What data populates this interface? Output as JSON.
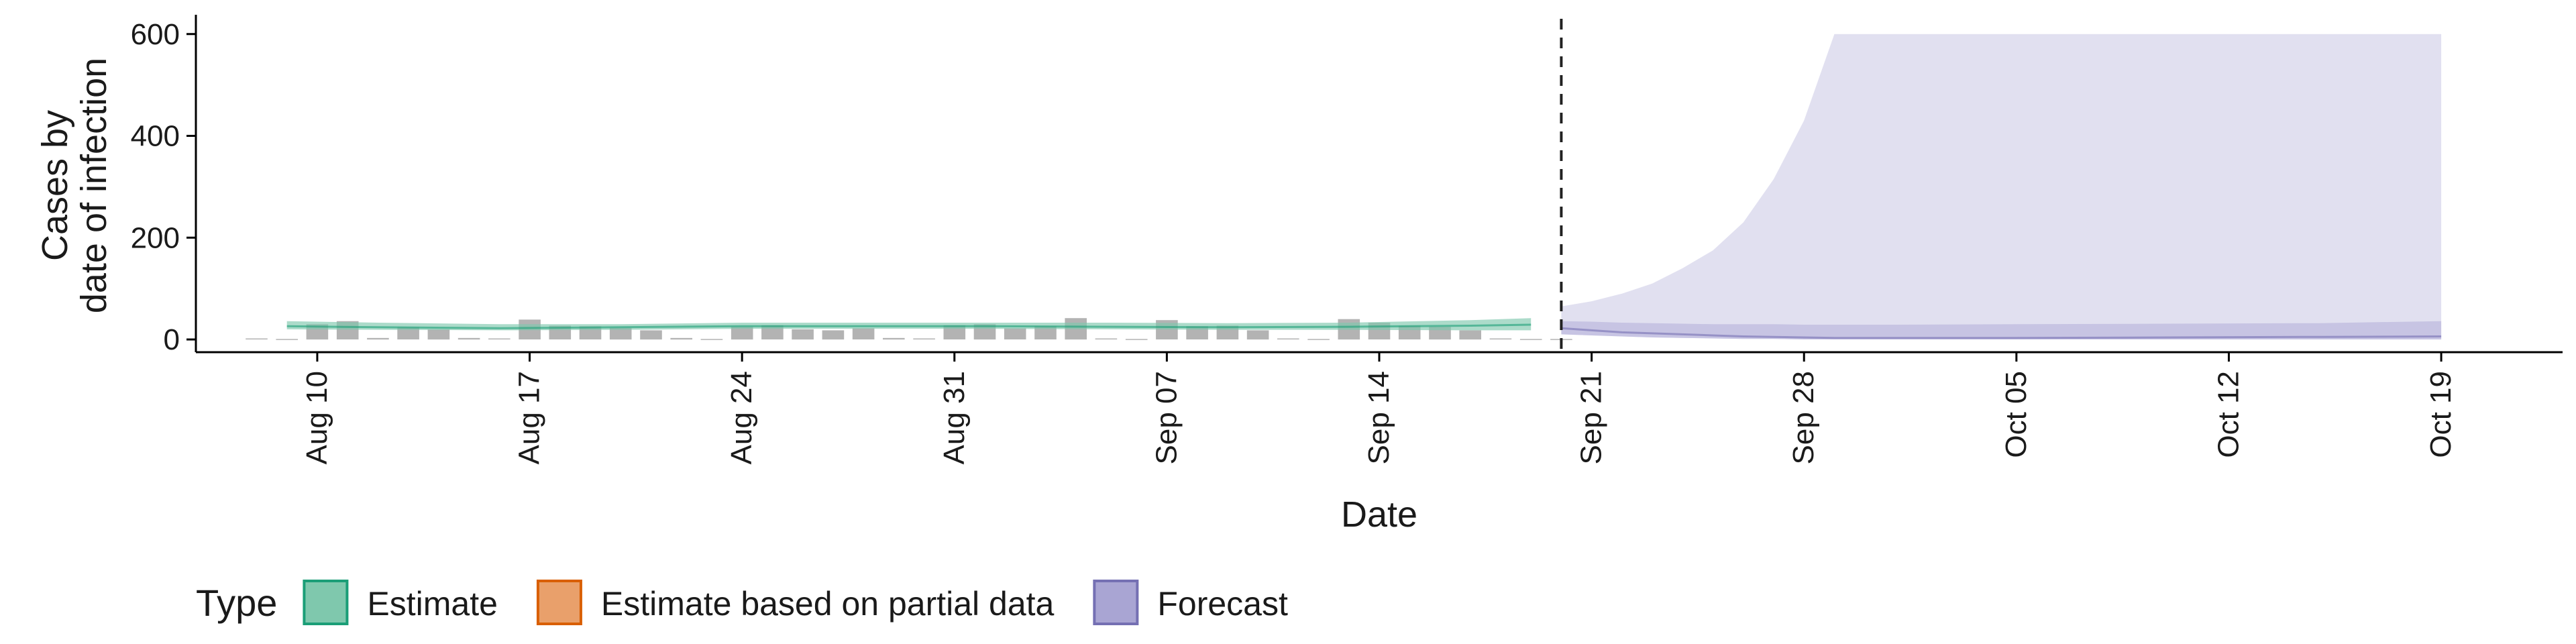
{
  "chart_data": {
    "type": "area",
    "xlabel": "Date",
    "ylabel_lines": [
      "Cases by",
      "date of infection"
    ],
    "ylim": [
      -25,
      630
    ],
    "yticks": [
      0,
      200,
      400,
      600
    ],
    "xlim": [
      "2020-08-06",
      "2020-10-23"
    ],
    "xticks": [
      "2020-08-10",
      "2020-08-17",
      "2020-08-24",
      "2020-08-31",
      "2020-09-07",
      "2020-09-14",
      "2020-09-21",
      "2020-09-28",
      "2020-10-05",
      "2020-10-12",
      "2020-10-19"
    ],
    "xtick_labels": [
      "Aug 10",
      "Aug 17",
      "Aug 24",
      "Aug 31",
      "Sep 07",
      "Sep 14",
      "Sep 21",
      "Sep 28",
      "Oct 05",
      "Oct 12",
      "Oct 19"
    ],
    "forecast_start": "2020-09-20",
    "observed_cases": {
      "dates": [
        "2020-08-08",
        "2020-08-09",
        "2020-08-10",
        "2020-08-11",
        "2020-08-12",
        "2020-08-13",
        "2020-08-14",
        "2020-08-15",
        "2020-08-16",
        "2020-08-17",
        "2020-08-18",
        "2020-08-19",
        "2020-08-20",
        "2020-08-21",
        "2020-08-22",
        "2020-08-23",
        "2020-08-24",
        "2020-08-25",
        "2020-08-26",
        "2020-08-27",
        "2020-08-28",
        "2020-08-29",
        "2020-08-30",
        "2020-08-31",
        "2020-09-01",
        "2020-09-02",
        "2020-09-03",
        "2020-09-04",
        "2020-09-05",
        "2020-09-06",
        "2020-09-07",
        "2020-09-08",
        "2020-09-09",
        "2020-09-10",
        "2020-09-11",
        "2020-09-12",
        "2020-09-13",
        "2020-09-14",
        "2020-09-15",
        "2020-09-16",
        "2020-09-17",
        "2020-09-18",
        "2020-09-19",
        "2020-09-20"
      ],
      "values": [
        2,
        1,
        30,
        36,
        3,
        24,
        20,
        3,
        2,
        39,
        27,
        26,
        23,
        18,
        3,
        1,
        25,
        28,
        20,
        18,
        22,
        3,
        2,
        28,
        30,
        22,
        26,
        42,
        2,
        1,
        38,
        26,
        27,
        18,
        2,
        1,
        40,
        33,
        27,
        25,
        18,
        2,
        1,
        1
      ]
    },
    "series": [
      {
        "name": "Estimate",
        "color": "#1b9e77",
        "fill": "#7fc8ad",
        "dates": [
          "2020-08-09",
          "2020-08-12",
          "2020-08-16",
          "2020-08-20",
          "2020-08-24",
          "2020-08-28",
          "2020-09-01",
          "2020-09-05",
          "2020-09-09",
          "2020-09-13",
          "2020-09-17",
          "2020-09-19"
        ],
        "median": [
          26,
          24,
          22,
          24,
          26,
          26,
          26,
          25,
          24,
          25,
          27,
          29
        ],
        "lower": [
          20,
          19,
          18,
          19,
          21,
          21,
          21,
          20,
          19,
          19,
          18,
          18
        ],
        "upper": [
          36,
          33,
          30,
          30,
          33,
          33,
          33,
          33,
          32,
          33,
          38,
          42
        ]
      },
      {
        "name": "Forecast",
        "color": "#7570b3",
        "fill": "#b8b5db",
        "dates": [
          "2020-09-20",
          "2020-09-21",
          "2020-09-22",
          "2020-09-23",
          "2020-09-24",
          "2020-09-25",
          "2020-09-26",
          "2020-09-27",
          "2020-09-28",
          "2020-09-29",
          "2020-09-30",
          "2020-10-01",
          "2020-10-05",
          "2020-10-10",
          "2020-10-15",
          "2020-10-19"
        ],
        "median": [
          22,
          18,
          14,
          12,
          10,
          8,
          6,
          5,
          4,
          3,
          3,
          3,
          3,
          4,
          5,
          6
        ],
        "lower": [
          10,
          8,
          6,
          4,
          3,
          2,
          1,
          1,
          0,
          0,
          0,
          0,
          0,
          0,
          0,
          0
        ],
        "upper": [
          36,
          35,
          33,
          32,
          31,
          30,
          30,
          30,
          29,
          29,
          29,
          29,
          30,
          31,
          32,
          36
        ],
        "outer_upper": [
          65,
          75,
          90,
          110,
          140,
          175,
          230,
          315,
          430,
          600,
          600,
          600,
          600,
          600,
          600,
          600
        ]
      }
    ],
    "legend": {
      "title": "Type",
      "position": "bottom-left",
      "items": [
        {
          "label": "Estimate",
          "fill": "#7fc8ad",
          "stroke": "#1b9e77"
        },
        {
          "label": "Estimate based on partial data",
          "fill": "#e9a06b",
          "stroke": "#d95f02"
        },
        {
          "label": "Forecast",
          "fill": "#a9a5d3",
          "stroke": "#7570b3"
        }
      ]
    },
    "grid": false
  }
}
